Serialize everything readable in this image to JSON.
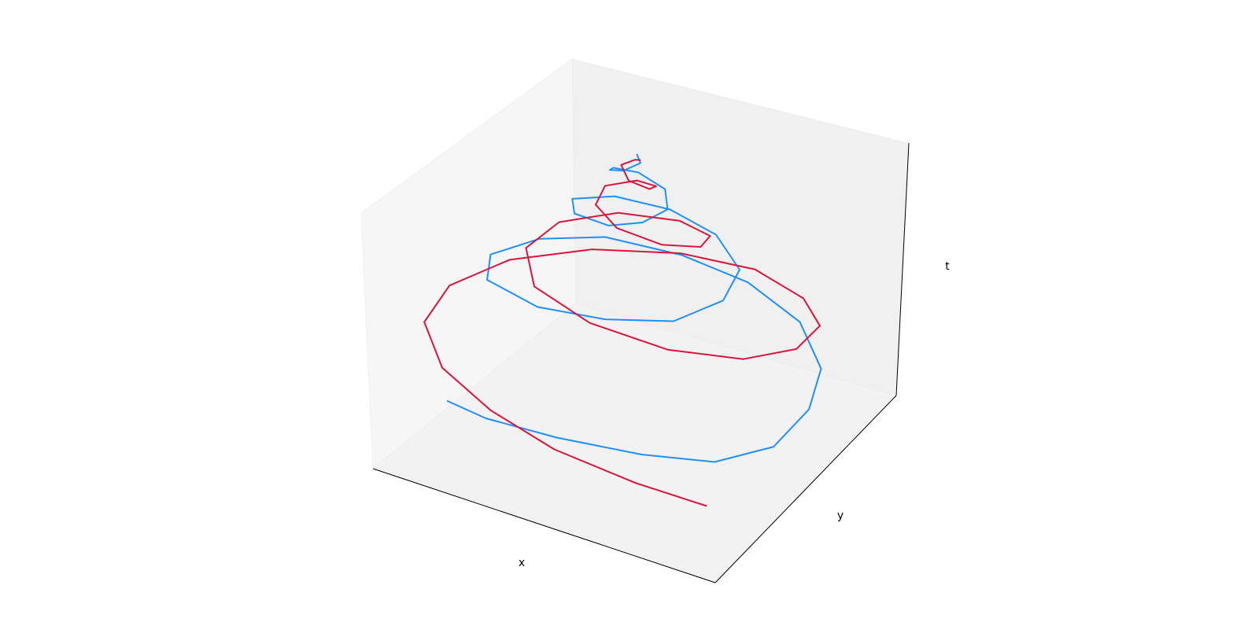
{
  "chart_data": {
    "type": "line",
    "projection": "3d",
    "title": "",
    "xlabel": "x",
    "ylabel": "y",
    "zlabel": "t",
    "tick_labels": "none",
    "grid": false,
    "legend": "none",
    "pane_colors": {
      "back": "#f0f0f0",
      "side": "#f6f6f6",
      "floor": "#f2f2f2",
      "axis_line": "#000000"
    },
    "series": [
      {
        "color": "#1e90ff",
        "points_xyt": [
          [
            -0.75,
            -0.85,
            0.0
          ],
          [
            -0.45,
            -1.0,
            0.03
          ],
          [
            0.0,
            -1.05,
            0.06
          ],
          [
            0.5,
            -1.02,
            0.09
          ],
          [
            0.9,
            -0.92,
            0.12
          ],
          [
            1.12,
            -0.6,
            0.15
          ],
          [
            1.12,
            -0.1,
            0.18
          ],
          [
            1.0,
            0.35,
            0.21
          ],
          [
            0.7,
            0.75,
            0.24
          ],
          [
            0.3,
            0.95,
            0.27
          ],
          [
            -0.1,
            0.95,
            0.3
          ],
          [
            -0.5,
            0.8,
            0.33
          ],
          [
            -0.75,
            0.45,
            0.36
          ],
          [
            -0.85,
            0.0,
            0.39
          ],
          [
            -0.7,
            -0.4,
            0.42
          ],
          [
            -0.3,
            -0.62,
            0.45
          ],
          [
            0.1,
            -0.6,
            0.48
          ],
          [
            0.45,
            -0.45,
            0.51
          ],
          [
            0.6,
            -0.1,
            0.54
          ],
          [
            0.55,
            0.25,
            0.57
          ],
          [
            0.3,
            0.5,
            0.6
          ],
          [
            0.0,
            0.55,
            0.63
          ],
          [
            -0.28,
            0.42,
            0.66
          ],
          [
            -0.42,
            0.15,
            0.69
          ],
          [
            -0.3,
            -0.1,
            0.72
          ],
          [
            -0.05,
            -0.2,
            0.75
          ],
          [
            0.12,
            -0.12,
            0.78
          ],
          [
            0.2,
            0.05,
            0.81
          ],
          [
            0.12,
            0.2,
            0.84
          ],
          [
            -0.05,
            0.22,
            0.87
          ],
          [
            -0.15,
            0.1,
            0.9
          ],
          [
            -0.12,
            -0.02,
            0.93
          ],
          [
            -0.02,
            -0.06,
            0.96
          ],
          [
            0.04,
            0.04,
            0.98
          ],
          [
            0.0,
            0.08,
            1.0
          ]
        ]
      },
      {
        "color": "#dc143c",
        "points_xyt": [
          [
            0.95,
            -1.15,
            0.0
          ],
          [
            0.55,
            -1.22,
            0.03
          ],
          [
            0.05,
            -1.2,
            0.06
          ],
          [
            -0.4,
            -1.05,
            0.09
          ],
          [
            -0.8,
            -0.8,
            0.12
          ],
          [
            -1.08,
            -0.4,
            0.15
          ],
          [
            -1.12,
            0.05,
            0.18
          ],
          [
            -0.95,
            0.5,
            0.21
          ],
          [
            -0.6,
            0.85,
            0.24
          ],
          [
            -0.15,
            1.05,
            0.27
          ],
          [
            0.3,
            1.05,
            0.3
          ],
          [
            0.7,
            0.8,
            0.33
          ],
          [
            0.95,
            0.45,
            0.36
          ],
          [
            1.0,
            0.0,
            0.39
          ],
          [
            0.85,
            -0.4,
            0.42
          ],
          [
            0.5,
            -0.65,
            0.45
          ],
          [
            0.05,
            -0.7,
            0.48
          ],
          [
            -0.35,
            -0.55,
            0.51
          ],
          [
            -0.55,
            -0.2,
            0.54
          ],
          [
            -0.5,
            0.15,
            0.57
          ],
          [
            -0.25,
            0.4,
            0.6
          ],
          [
            0.1,
            0.45,
            0.63
          ],
          [
            0.35,
            0.3,
            0.66
          ],
          [
            0.4,
            0.05,
            0.69
          ],
          [
            0.25,
            -0.15,
            0.72
          ],
          [
            0.0,
            -0.2,
            0.75
          ],
          [
            -0.18,
            -0.08,
            0.78
          ],
          [
            -0.2,
            0.1,
            0.81
          ],
          [
            -0.05,
            0.2,
            0.84
          ],
          [
            0.1,
            0.12,
            0.87
          ],
          [
            0.12,
            -0.02,
            0.9
          ],
          [
            0.02,
            -0.08,
            0.93
          ],
          [
            -0.06,
            0.0,
            0.96
          ],
          [
            0.0,
            0.06,
            0.98
          ],
          [
            0.05,
            0.02,
            1.0
          ]
        ]
      }
    ]
  }
}
